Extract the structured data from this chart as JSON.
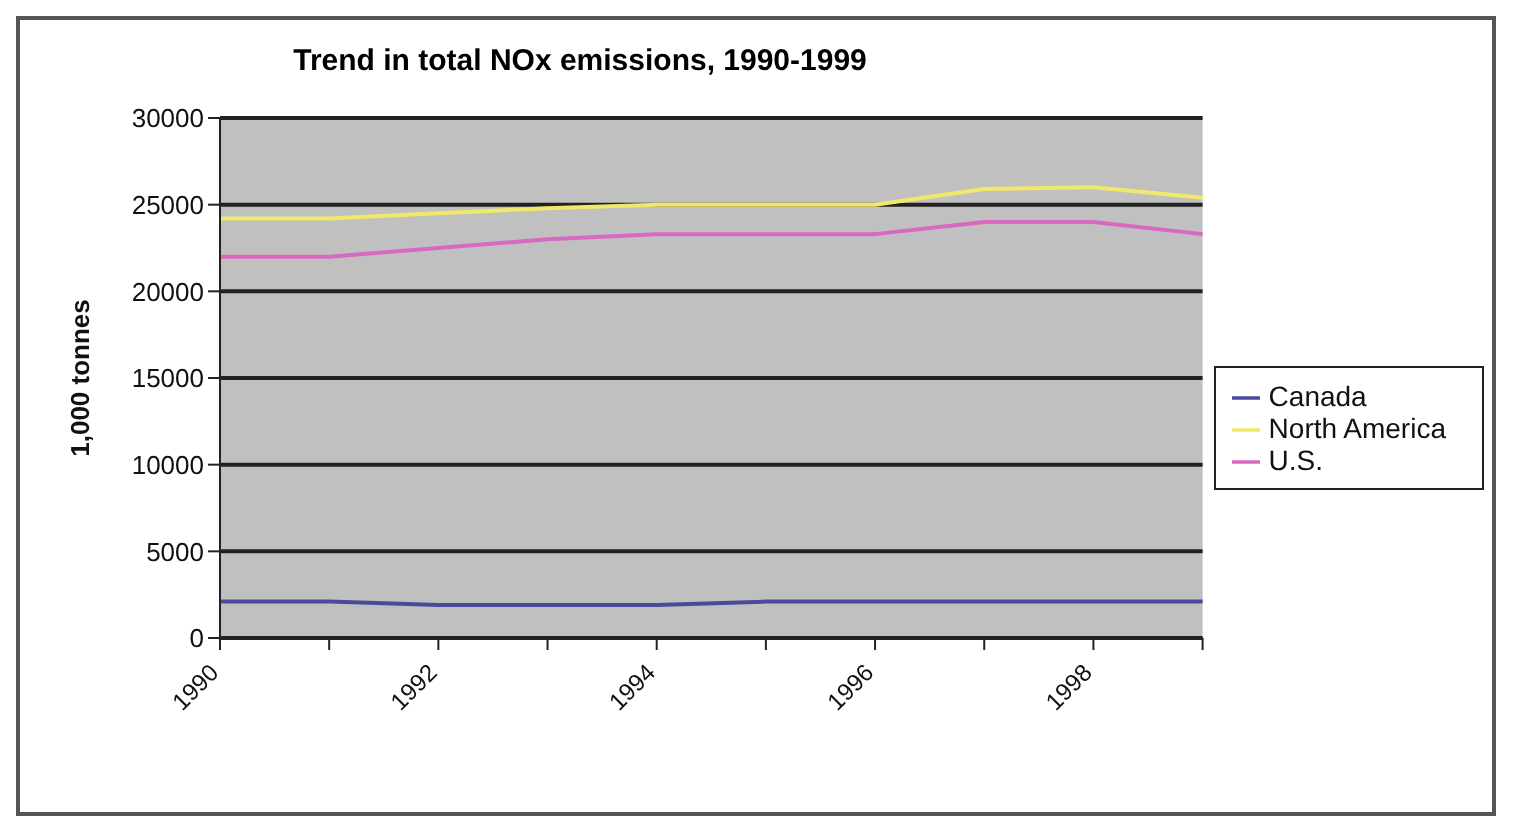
{
  "chart_data": {
    "type": "line",
    "title": "Trend in total NOx emissions, 1990-1999",
    "ylabel": "1,000 tonnes",
    "categories": [
      "1990",
      null,
      "1992",
      null,
      "1994",
      null,
      "1996",
      null,
      "1998",
      null
    ],
    "series": [
      {
        "name": "Canada",
        "color": "#4b4b9c",
        "values": [
          2100,
          2100,
          1900,
          1900,
          1900,
          2100,
          2100,
          2100,
          2100,
          2100
        ]
      },
      {
        "name": "U.S.",
        "color": "#d868c0",
        "values": [
          22000,
          22000,
          22500,
          23000,
          23300,
          23300,
          23300,
          24000,
          24000,
          23300
        ]
      },
      {
        "name": "North America",
        "color": "#f0e868",
        "values": [
          24200,
          24200,
          24500,
          24800,
          25000,
          25000,
          25000,
          25900,
          26000,
          25400
        ]
      }
    ],
    "ylim": [
      0,
      30000
    ],
    "yticks": [
      0,
      5000,
      10000,
      15000,
      20000,
      25000,
      30000
    ],
    "grid": "y",
    "legend": "right",
    "marker": "none",
    "line_style": "solid"
  }
}
